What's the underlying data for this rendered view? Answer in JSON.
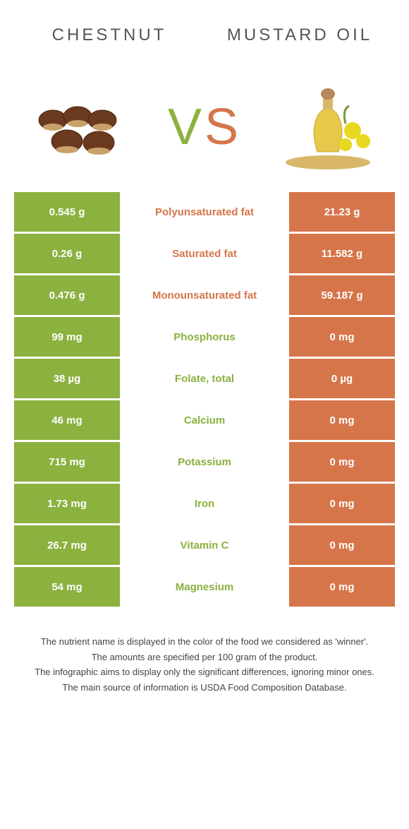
{
  "header": {
    "left_title": "Chestnut",
    "right_title": "Mustard oil"
  },
  "vs": {
    "v": "V",
    "s": "S"
  },
  "colors": {
    "left_bg": "#8bb13f",
    "right_bg": "#d6754a",
    "left_text": "#8bb13f",
    "right_text": "#d6754a",
    "cell_text_white": "#ffffff"
  },
  "table": {
    "rows": [
      {
        "left": "0.545 g",
        "label": "Polyunsaturated fat",
        "right": "21.23 g",
        "winner": "right"
      },
      {
        "left": "0.26 g",
        "label": "Saturated fat",
        "right": "11.582 g",
        "winner": "right"
      },
      {
        "left": "0.476 g",
        "label": "Monounsaturated fat",
        "right": "59.187 g",
        "winner": "right"
      },
      {
        "left": "99 mg",
        "label": "Phosphorus",
        "right": "0 mg",
        "winner": "left"
      },
      {
        "left": "38 µg",
        "label": "Folate, total",
        "right": "0 µg",
        "winner": "left"
      },
      {
        "left": "46 mg",
        "label": "Calcium",
        "right": "0 mg",
        "winner": "left"
      },
      {
        "left": "715 mg",
        "label": "Potassium",
        "right": "0 mg",
        "winner": "left"
      },
      {
        "left": "1.73 mg",
        "label": "Iron",
        "right": "0 mg",
        "winner": "left"
      },
      {
        "left": "26.7 mg",
        "label": "Vitamin C",
        "right": "0 mg",
        "winner": "left"
      },
      {
        "left": "54 mg",
        "label": "Magnesium",
        "right": "0 mg",
        "winner": "left"
      }
    ]
  },
  "footer": {
    "line1": "The nutrient name is displayed in the color of the food we considered as 'winner'.",
    "line2": "The amounts are specified per 100 gram of the product.",
    "line3": "The infographic aims to display only the significant differences, ignoring minor ones.",
    "line4": "The main source of information is USDA Food Composition Database."
  }
}
